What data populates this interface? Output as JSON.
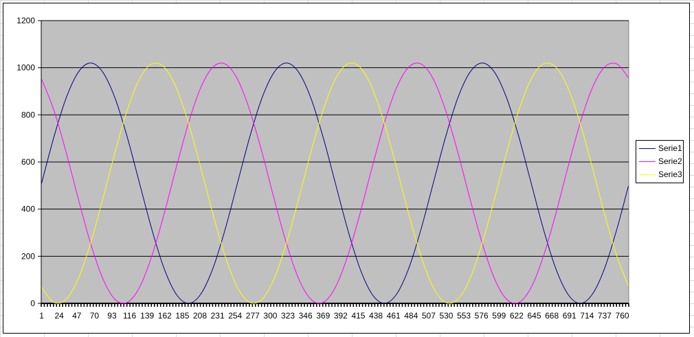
{
  "chart_data": {
    "type": "line",
    "title": "",
    "xlabel": "",
    "ylabel": "",
    "ylim": [
      0,
      1200
    ],
    "yticks": [
      "0",
      "200",
      "400",
      "600",
      "800",
      "1000",
      "1200"
    ],
    "xlim": [
      1,
      768
    ],
    "xtick_labels": [
      "1",
      "24",
      "47",
      "70",
      "93",
      "116",
      "139",
      "162",
      "185",
      "208",
      "231",
      "254",
      "277",
      "300",
      "323",
      "346",
      "369",
      "392",
      "415",
      "438",
      "461",
      "484",
      "507",
      "530",
      "553",
      "576",
      "599",
      "622",
      "645",
      "668",
      "691",
      "714",
      "737",
      "760"
    ],
    "grid": "horizontal major",
    "legend": "right",
    "plot_background": "#C0C0C0",
    "x": [
      1,
      17,
      33,
      49,
      65,
      81,
      97,
      113,
      129,
      145,
      161,
      177,
      193,
      209,
      225,
      241,
      257,
      273,
      289,
      305,
      321,
      337,
      353,
      369,
      385,
      401,
      417,
      433,
      449,
      465,
      481,
      497,
      513,
      529,
      545,
      561,
      577,
      593,
      609,
      625,
      641,
      657,
      673,
      689,
      705,
      721,
      737,
      753,
      768
    ],
    "series": [
      {
        "name": "Serie1",
        "color": "#000080",
        "values": [
          510,
          705,
          871,
          981,
          1020,
          981,
          871,
          705,
          510,
          315,
          149,
          39,
          0,
          39,
          149,
          315,
          510,
          705,
          871,
          981,
          1020,
          981,
          871,
          705,
          510,
          315,
          149,
          39,
          0,
          39,
          149,
          315,
          510,
          705,
          871,
          981,
          1020,
          981,
          871,
          705,
          510,
          315,
          149,
          39,
          0,
          39,
          149,
          315,
          497
        ]
      },
      {
        "name": "Serie2",
        "color": "#FF00FF",
        "values": [
          952,
          820,
          642,
          443,
          255,
          105,
          17,
          4,
          68,
          200,
          378,
          577,
          765,
          915,
          1003,
          1016,
          952,
          820,
          642,
          443,
          255,
          105,
          17,
          4,
          68,
          200,
          378,
          577,
          765,
          915,
          1003,
          1016,
          952,
          820,
          642,
          443,
          255,
          105,
          17,
          4,
          68,
          200,
          378,
          577,
          765,
          915,
          1003,
          1016,
          958
        ]
      },
      {
        "name": "Serie3",
        "color": "#FFFF00",
        "values": [
          68,
          4,
          17,
          105,
          255,
          443,
          642,
          820,
          952,
          1016,
          1003,
          915,
          765,
          577,
          378,
          200,
          68,
          4,
          17,
          105,
          255,
          443,
          642,
          820,
          952,
          1016,
          1003,
          915,
          765,
          577,
          378,
          200,
          68,
          4,
          17,
          105,
          255,
          443,
          642,
          820,
          952,
          1016,
          1003,
          915,
          765,
          577,
          378,
          200,
          75
        ]
      }
    ]
  }
}
